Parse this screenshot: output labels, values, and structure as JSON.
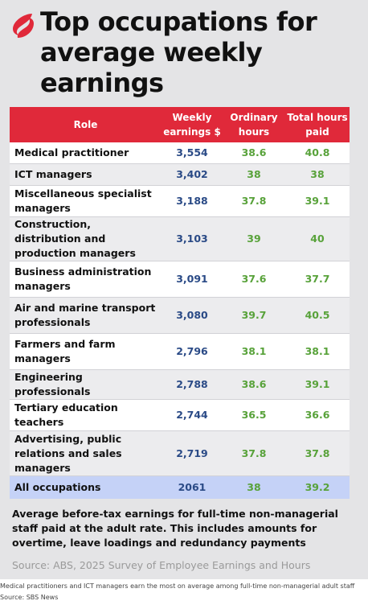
{
  "title": "Top occupations for average weekly earnings",
  "columns": {
    "role": "Role",
    "weekly": "Weekly earnings $",
    "ordinary": "Ordinary hours",
    "total": "Total hours paid"
  },
  "rows": [
    {
      "role": "Medical practitioner",
      "weekly": "3,554",
      "ordinary": "38.6",
      "total": "40.8"
    },
    {
      "role": "ICT managers",
      "weekly": "3,402",
      "ordinary": "38",
      "total": "38"
    },
    {
      "role": "Miscellaneous specialist managers",
      "weekly": "3,188",
      "ordinary": "37.8",
      "total": "39.1"
    },
    {
      "role": "Construction, distribution and production managers",
      "weekly": "3,103",
      "ordinary": "39",
      "total": "40"
    },
    {
      "role": "Business administration managers",
      "weekly": "3,091",
      "ordinary": "37.6",
      "total": "37.7"
    },
    {
      "role": "Air and marine transport professionals",
      "weekly": "3,080",
      "ordinary": "39.7",
      "total": "40.5"
    },
    {
      "role": "Farmers and farm managers",
      "weekly": "2,796",
      "ordinary": "38.1",
      "total": "38.1"
    },
    {
      "role": "Engineering professionals",
      "weekly": "2,788",
      "ordinary": "38.6",
      "total": "39.1"
    },
    {
      "role": "Tertiary education teachers",
      "weekly": "2,744",
      "ordinary": "36.5",
      "total": "36.6"
    },
    {
      "role": "Advertising, public relations and sales managers",
      "weekly": "2,719",
      "ordinary": "37.8",
      "total": "37.8"
    }
  ],
  "total_row": {
    "role": "All occupations",
    "weekly": "2061",
    "ordinary": "38",
    "total": "39.2"
  },
  "note": "Average before-tax earnings for full-time non-managerial staff paid at the adult rate. This includes amounts for overtime, leave loadings and redundancy payments",
  "source": "Source: ABS, 2025 Survey of Employee Earnings and Hours",
  "caption": "Medical practitioners and ICT managers earn the most on average among full-time non-managerial adult staff",
  "credit": "Source: SBS News",
  "colors": {
    "header": "#e0293a",
    "weekly_text": "#2a4a86",
    "hours_text": "#58a23a",
    "total_row_bg": "#c5d2f7",
    "background": "#e4e4e6"
  },
  "icons": {
    "logo": "sbs-logo-icon"
  }
}
